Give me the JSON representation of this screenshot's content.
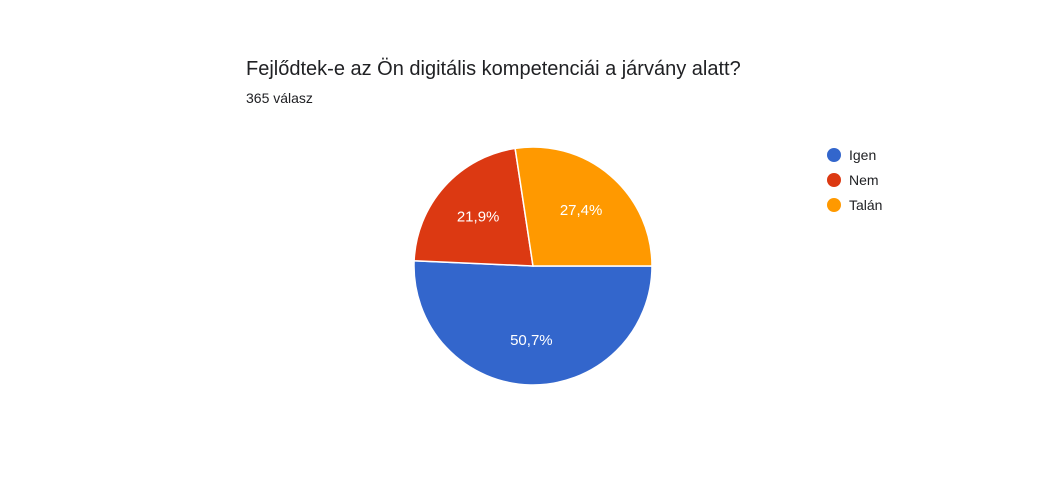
{
  "header": {
    "question": "Fejlődtek-e az Ön digitális kompetenciái a járvány alatt?",
    "responses": "365 válasz"
  },
  "chart_data": {
    "type": "pie",
    "categories": [
      "Igen",
      "Nem",
      "Talán"
    ],
    "values": [
      50.7,
      21.9,
      27.4
    ],
    "labels": [
      "50,7%",
      "21,9%",
      "27,4%"
    ],
    "colors": [
      "#3366cc",
      "#dc3912",
      "#ff9900"
    ],
    "legend_position": "right",
    "title": "Fejlődtek-e az Ön digitális kompetenciái a járvány alatt?"
  }
}
